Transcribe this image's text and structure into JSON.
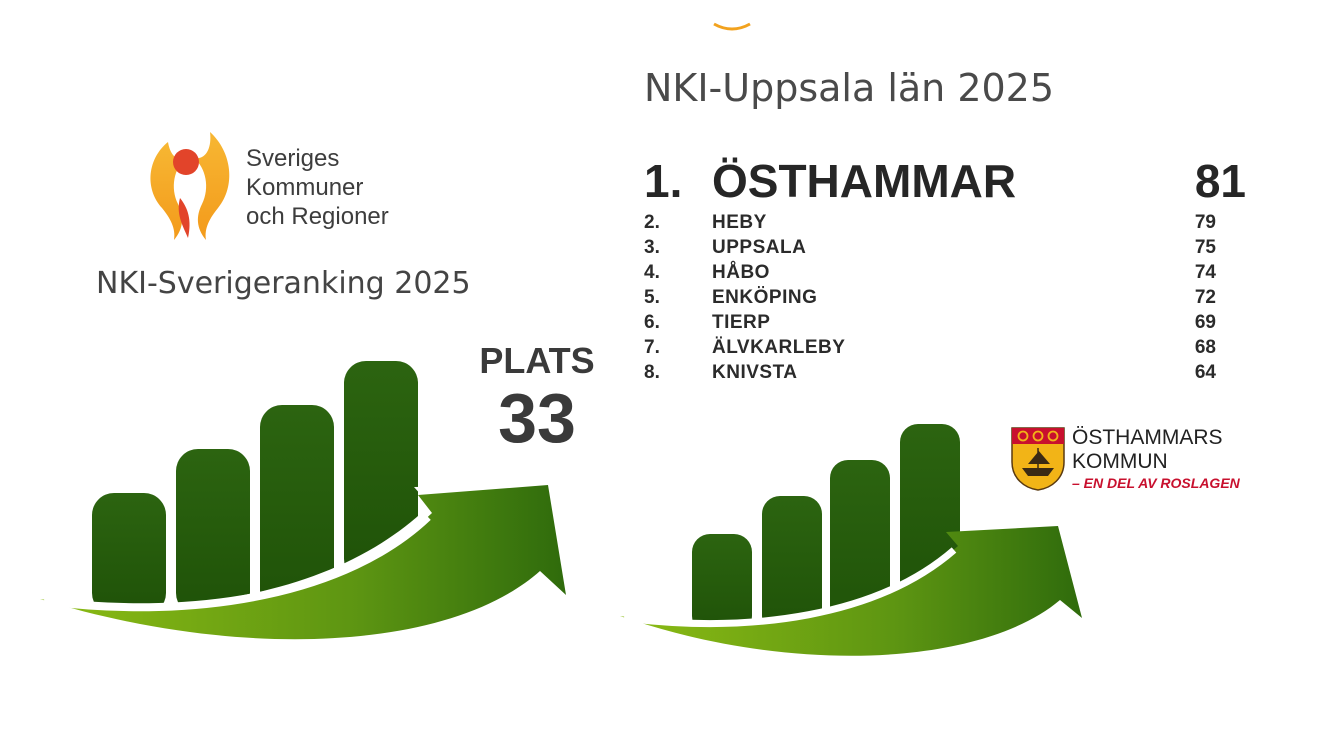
{
  "left_panel": {
    "skr_logo_lines": [
      "Sveriges",
      "Kommuner",
      "och Regioner"
    ],
    "title": "NKI-Sverigeranking 2025",
    "plats_label": "PLATS",
    "plats_number": "33"
  },
  "right_panel": {
    "title": "NKI-Uppsala län 2025",
    "top": {
      "rank": "1.",
      "name": "ÖSTHAMMAR",
      "score": "81"
    },
    "rankings": [
      {
        "rank": "2.",
        "name": "HEBY",
        "score": "79"
      },
      {
        "rank": "3.",
        "name": "UPPSALA",
        "score": "75"
      },
      {
        "rank": "4.",
        "name": "HÅBO",
        "score": "74"
      },
      {
        "rank": "5.",
        "name": "ENKÖPING",
        "score": "72"
      },
      {
        "rank": "6.",
        "name": "TIERP",
        "score": "69"
      },
      {
        "rank": "7.",
        "name": "ÄLVKARLEBY",
        "score": "68"
      },
      {
        "rank": "8.",
        "name": "KNIVSTA",
        "score": "64"
      }
    ],
    "osthammar_logo": {
      "line1": "ÖSTHAMMARS",
      "line2": "KOMMUN",
      "tagline": "– EN DEL AV ROSLAGEN"
    }
  },
  "colors": {
    "bar_dark_green": "#245a0a",
    "arrow_light_green": "#7fb015",
    "skr_orange": "#f2a21e",
    "skr_red": "#e2442a",
    "osthammar_red": "#c8102e"
  }
}
